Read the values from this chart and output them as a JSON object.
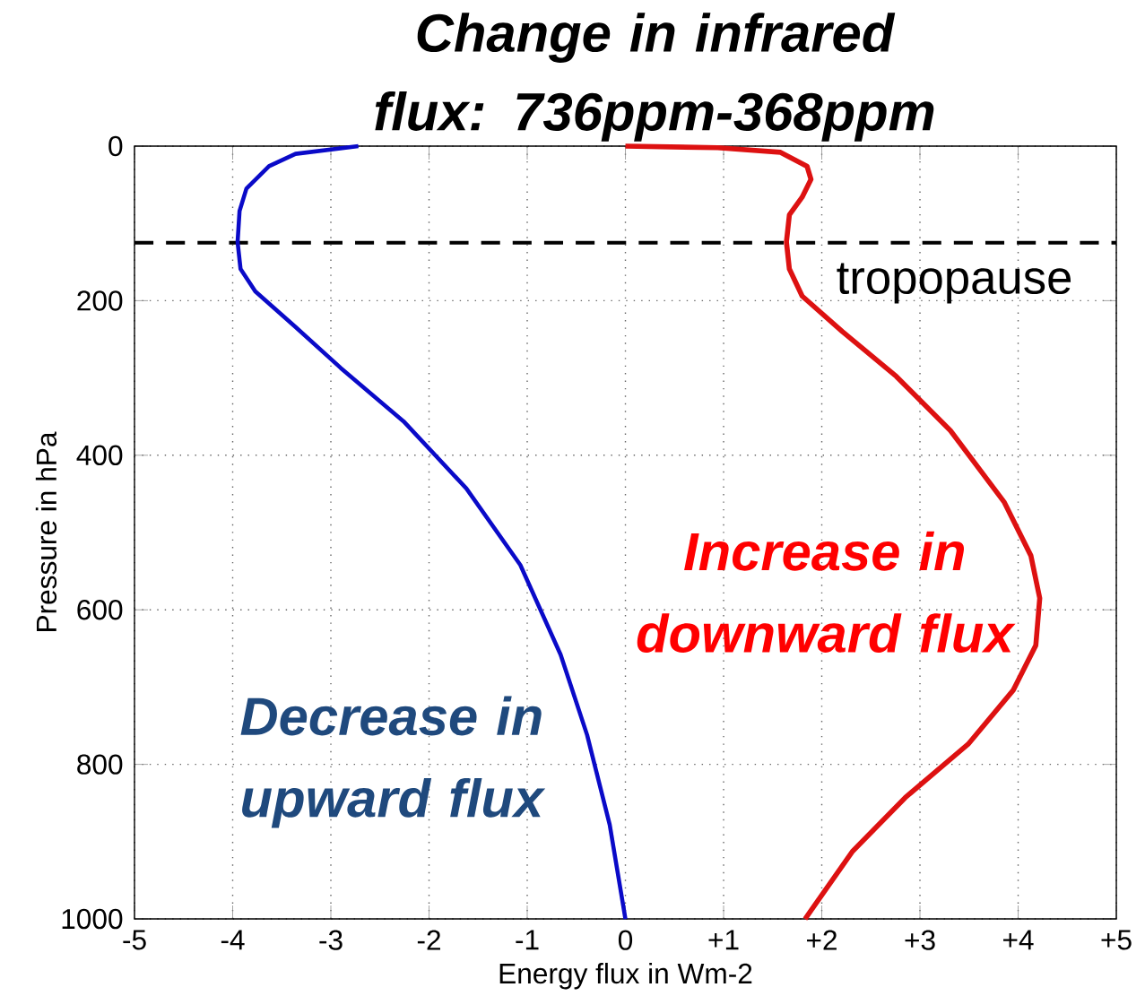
{
  "chart_data": {
    "type": "line",
    "title": "Change in infrared flux: 736ppm-368ppm",
    "xlabel": "Energy flux in Wm-2",
    "ylabel": "Pressure in hPa",
    "series": [
      {
        "name": "Decrease in upward flux",
        "color": "#0a0ac8",
        "x": [
          -2.72,
          -3.36,
          -3.63,
          -3.86,
          -3.93,
          -3.95,
          -3.92,
          -3.77,
          -3.36,
          -2.9,
          -2.26,
          -1.62,
          -1.07,
          -0.66,
          -0.39,
          -0.16,
          0
        ],
        "values": [
          0,
          10,
          26,
          55,
          84,
          124,
          159,
          188,
          234,
          287,
          356,
          443,
          542,
          658,
          762,
          878,
          1000
        ]
      },
      {
        "name": "Increase in downward flux",
        "color": "#dd1111",
        "x": [
          0,
          0.94,
          1.58,
          1.85,
          1.89,
          1.8,
          1.67,
          1.64,
          1.67,
          1.8,
          2.21,
          2.76,
          3.31,
          3.86,
          4.13,
          4.22,
          4.18,
          3.95,
          3.49,
          2.85,
          2.31,
          1.83
        ],
        "values": [
          0,
          2,
          8,
          26,
          43,
          66,
          89,
          124,
          159,
          194,
          240,
          298,
          368,
          461,
          530,
          585,
          646,
          704,
          774,
          843,
          913,
          1000
        ]
      }
    ],
    "xlim": [
      -5,
      5
    ],
    "ylim": [
      1000,
      0
    ],
    "xticks": [
      -5,
      -4,
      -3,
      -2,
      -1,
      0,
      {
        "value": 1,
        "label": "+1"
      },
      {
        "value": 2,
        "label": "+2"
      },
      {
        "value": 3,
        "label": "+3"
      },
      {
        "value": 4,
        "label": "+4"
      },
      {
        "value": 5,
        "label": "+5"
      }
    ],
    "yticks": [
      0,
      200,
      400,
      600,
      800,
      1000
    ],
    "grid": true,
    "marker": "none",
    "line_style": "solid",
    "ref_lines": [
      {
        "axis": "y",
        "value": 125,
        "label": "tropopause",
        "color": "#000000",
        "line_style": "dashed"
      }
    ]
  }
}
